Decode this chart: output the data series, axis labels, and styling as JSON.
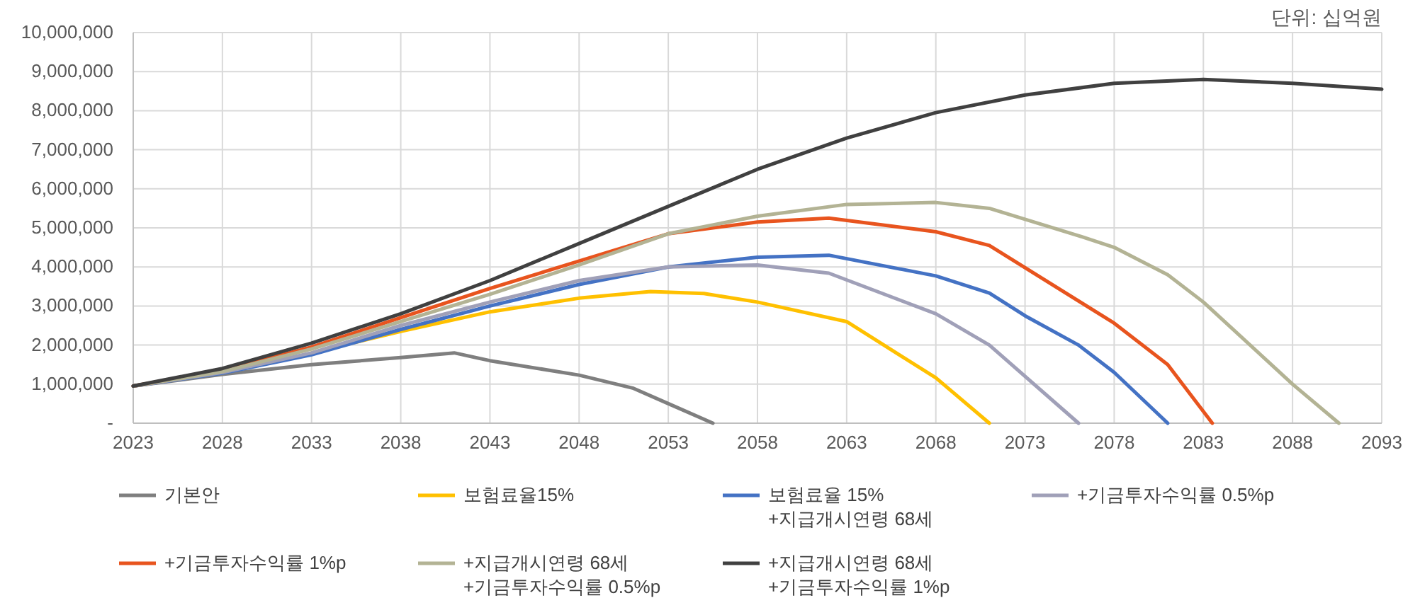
{
  "chart_data": {
    "type": "line",
    "annotations": [
      "단위: 십억원"
    ],
    "xlim": [
      2023,
      2093
    ],
    "xticks": [
      2023,
      2028,
      2033,
      2038,
      2043,
      2048,
      2053,
      2058,
      2063,
      2068,
      2073,
      2078,
      2083,
      2088,
      2093
    ],
    "ylim": [
      0,
      10000000
    ],
    "yticks": [
      {
        "value": 0,
        "label": "-"
      },
      {
        "value": 1000000,
        "label": "1,000,000"
      },
      {
        "value": 2000000,
        "label": "2,000,000"
      },
      {
        "value": 3000000,
        "label": "3,000,000"
      },
      {
        "value": 4000000,
        "label": "4,000,000"
      },
      {
        "value": 5000000,
        "label": "5,000,000"
      },
      {
        "value": 6000000,
        "label": "6,000,000"
      },
      {
        "value": 7000000,
        "label": "7,000,000"
      },
      {
        "value": 8000000,
        "label": "8,000,000"
      },
      {
        "value": 9000000,
        "label": "9,000,000"
      },
      {
        "value": 10000000,
        "label": "10,000,000"
      }
    ],
    "grid": true,
    "legend": "bottom",
    "line_style": "solid",
    "marker": "none",
    "series": [
      {
        "name": "기본안",
        "color": "#7f7f7f",
        "x": [
          2023,
          2028,
          2033,
          2038,
          2041,
          2043,
          2048,
          2051,
          2053,
          2055.5
        ],
        "values": [
          950000,
          1250000,
          1500000,
          1680000,
          1800000,
          1600000,
          1230000,
          900000,
          500000,
          0
        ]
      },
      {
        "name": "보험료율15%",
        "color": "#ffc000",
        "x": [
          2033,
          2038,
          2043,
          2048,
          2052,
          2055,
          2058,
          2063,
          2068,
          2071
        ],
        "values": [
          1800000,
          2350000,
          2850000,
          3200000,
          3370000,
          3320000,
          3100000,
          2600000,
          1160000,
          0
        ]
      },
      {
        "name": "보험료율 15%\n+지급개시연령 68세",
        "color": "#4472c4",
        "x": [
          2023,
          2028,
          2033,
          2038,
          2043,
          2048,
          2053,
          2058,
          2062,
          2068,
          2071,
          2073,
          2076,
          2078,
          2081
        ],
        "values": [
          950000,
          1280000,
          1750000,
          2400000,
          3000000,
          3550000,
          4000000,
          4250000,
          4300000,
          3770000,
          3330000,
          2750000,
          2000000,
          1300000,
          0
        ]
      },
      {
        "name": "+기금투자수익률 0.5%p",
        "color": "#a0a0b8",
        "x": [
          2023,
          2028,
          2033,
          2038,
          2043,
          2048,
          2053,
          2058,
          2062,
          2068,
          2071,
          2076
        ],
        "values": [
          950000,
          1300000,
          1800000,
          2500000,
          3100000,
          3650000,
          4000000,
          4050000,
          3840000,
          2800000,
          2000000,
          0
        ]
      },
      {
        "name": "+기금투자수익률 1%p",
        "color": "#e8541e",
        "x": [
          2023,
          2028,
          2033,
          2038,
          2043,
          2048,
          2053,
          2058,
          2062,
          2068,
          2071,
          2078,
          2081,
          2083.5
        ],
        "values": [
          950000,
          1350000,
          1950000,
          2700000,
          3450000,
          4150000,
          4850000,
          5150000,
          5250000,
          4900000,
          4550000,
          2560000,
          1500000,
          0
        ]
      },
      {
        "name": "+지급개시연령 68세\n+기금투자수익률 0.5%p",
        "color": "#b3b394",
        "x": [
          2023,
          2028,
          2033,
          2038,
          2043,
          2048,
          2053,
          2058,
          2063,
          2068,
          2071,
          2076,
          2078,
          2081,
          2083,
          2088,
          2090.6
        ],
        "values": [
          950000,
          1320000,
          1900000,
          2600000,
          3300000,
          4050000,
          4850000,
          5300000,
          5600000,
          5650000,
          5500000,
          4800000,
          4500000,
          3800000,
          3100000,
          1000000,
          0
        ]
      },
      {
        "name": "+지급개시연령 68세\n+기금투자수익률 1%p",
        "color": "#404040",
        "x": [
          2023,
          2028,
          2033,
          2038,
          2043,
          2048,
          2053,
          2058,
          2063,
          2068,
          2073,
          2078,
          2083,
          2088,
          2093
        ],
        "values": [
          950000,
          1400000,
          2050000,
          2800000,
          3650000,
          4600000,
          5550000,
          6500000,
          7300000,
          7950000,
          8400000,
          8700000,
          8800000,
          8700000,
          8550000
        ]
      }
    ]
  }
}
